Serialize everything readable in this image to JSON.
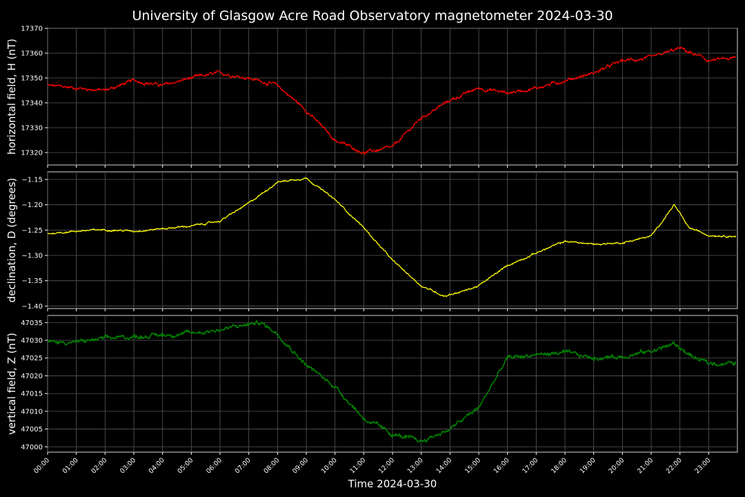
{
  "figure": {
    "title": "University of Glasgow Acre Road Observatory magnetometer 2024-03-30",
    "xlabel": "Time 2024-03-30"
  },
  "chart_data": [
    {
      "type": "line",
      "series": [
        {
          "name": "",
          "color": "#ff0000"
        }
      ],
      "ylabel": "horizontal field, H (nT)",
      "ylim": [
        17315,
        17370
      ],
      "yticks": [
        17320,
        17330,
        17340,
        17350,
        17360,
        17370
      ],
      "x": [
        0,
        1,
        2,
        3,
        4,
        5,
        6,
        7,
        8,
        9,
        10,
        11,
        12,
        13,
        14,
        15,
        16,
        17,
        18,
        19,
        20,
        21,
        22,
        23,
        23.95
      ],
      "values": [
        17347,
        17346,
        17345,
        17349,
        17347,
        17350,
        17352,
        17350,
        17347,
        17337,
        17325,
        17320,
        17322,
        17334,
        17341,
        17346,
        17344,
        17346,
        17349,
        17352,
        17357,
        17358,
        17362,
        17357,
        17358
      ],
      "x_unit": "hours",
      "grid": true
    },
    {
      "type": "line",
      "series": [
        {
          "name": "",
          "color": "#ffff00"
        }
      ],
      "ylabel": "declination, D (degrees)",
      "ylim": [
        -1.405,
        -1.135
      ],
      "yticks": [
        -1.4,
        -1.35,
        -1.3,
        -1.25,
        -1.2,
        -1.15
      ],
      "ytick_labels": [
        "−1.40",
        "−1.35",
        "−1.30",
        "−1.25",
        "−1.20",
        "−1.15"
      ],
      "x": [
        0,
        1,
        2,
        3,
        4,
        5,
        6,
        7,
        8,
        9,
        10,
        11,
        12,
        13,
        13.8,
        14.5,
        15,
        16,
        17,
        18,
        19,
        20,
        21,
        21.8,
        22.3,
        23,
        23.95
      ],
      "values": [
        -1.257,
        -1.252,
        -1.249,
        -1.252,
        -1.247,
        -1.242,
        -1.232,
        -1.197,
        -1.155,
        -1.147,
        -1.19,
        -1.245,
        -1.31,
        -1.36,
        -1.38,
        -1.37,
        -1.36,
        -1.32,
        -1.295,
        -1.272,
        -1.278,
        -1.275,
        -1.262,
        -1.2,
        -1.245,
        -1.26,
        -1.262
      ],
      "x_unit": "hours",
      "grid": true
    },
    {
      "type": "line",
      "series": [
        {
          "name": "",
          "color": "#008000"
        }
      ],
      "ylabel": "vertical field, Z (nT)",
      "ylim": [
        46998.5,
        47037
      ],
      "yticks": [
        47000,
        47005,
        47010,
        47015,
        47020,
        47025,
        47030,
        47035
      ],
      "x": [
        0,
        1,
        2,
        3,
        4,
        5,
        6,
        7,
        7.4,
        8,
        9,
        10,
        11,
        12,
        13,
        14,
        15,
        15.5,
        16,
        17,
        18,
        19,
        20,
        21,
        21.8,
        22.5,
        23,
        23.95
      ],
      "values": [
        47029.5,
        47029.5,
        47030.5,
        47031,
        47031.5,
        47032,
        47033,
        47034.5,
        47035,
        47032,
        47023,
        47017,
        47008,
        47003.5,
        47001.5,
        47005,
        47011,
        47018,
        47025,
        47026,
        47026.5,
        47025,
        47025.5,
        47027,
        47029,
        47025,
        47023.5,
        47023.5
      ],
      "x_unit": "hours",
      "grid": true
    }
  ],
  "xaxis": {
    "xlim": [
      0,
      24
    ],
    "tick_labels": [
      "00:00",
      "01:00",
      "02:00",
      "03:00",
      "04:00",
      "05:00",
      "06:00",
      "07:00",
      "08:00",
      "09:00",
      "10:00",
      "11:00",
      "12:00",
      "13:00",
      "14:00",
      "15:00",
      "16:00",
      "17:00",
      "18:00",
      "19:00",
      "20:00",
      "21:00",
      "22:00",
      "23:00"
    ]
  }
}
